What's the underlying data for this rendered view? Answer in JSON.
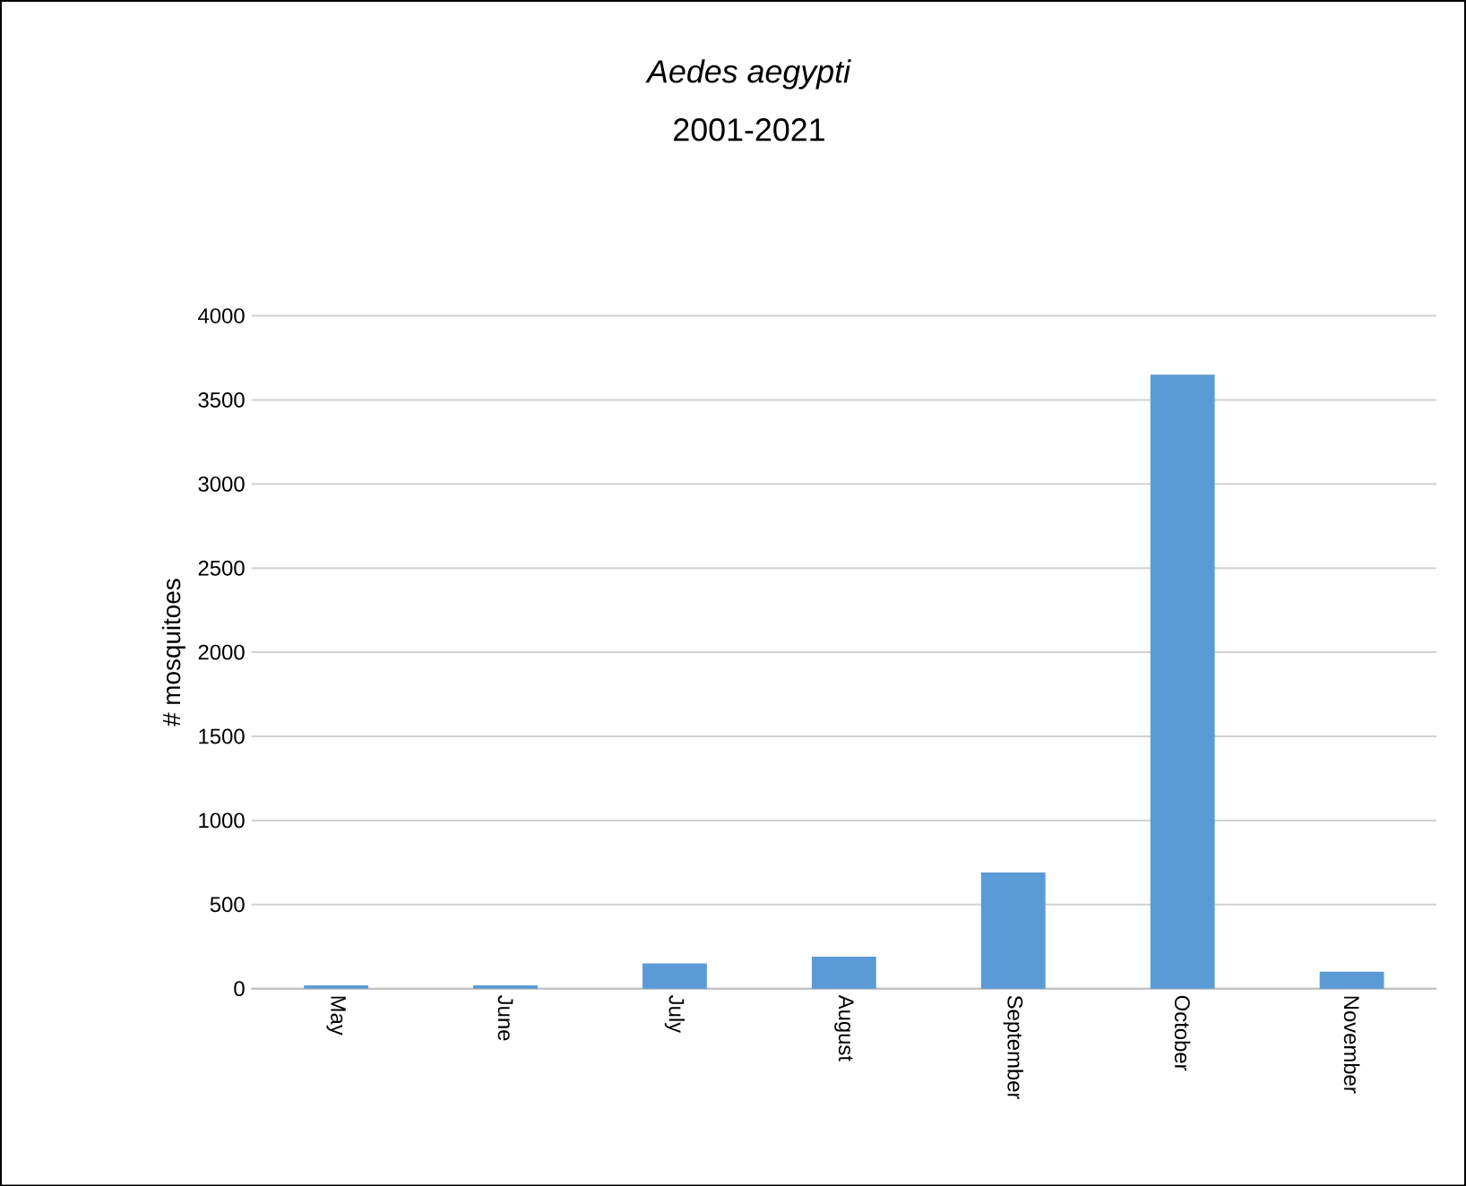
{
  "chart_data": {
    "type": "bar",
    "title": "*Aedes aegypti*",
    "subtitle": "2001-2021",
    "ylabel": "# mosquitoes",
    "categories": [
      "May",
      "June",
      "July",
      "August",
      "September",
      "October",
      "November"
    ],
    "values": [
      20,
      20,
      150,
      190,
      690,
      3650,
      100
    ],
    "color": "#5b9bd5",
    "ylim": [
      0,
      4000
    ],
    "yticks": [
      0,
      500,
      1000,
      1500,
      2000,
      2500,
      3000,
      3500,
      4000
    ],
    "grid": "y"
  }
}
